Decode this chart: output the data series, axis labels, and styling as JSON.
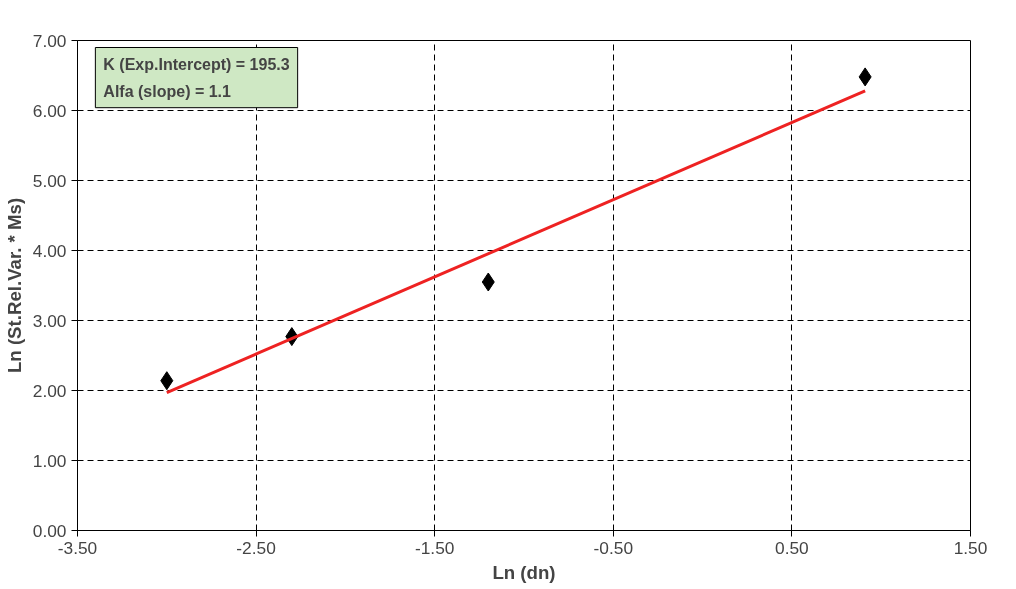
{
  "chart_data": {
    "type": "scatter",
    "xlabel": "Ln (dn)",
    "ylabel": "Ln (St.Rel.Var. * Ms)",
    "annotations": [
      "K (Exp.Intercept) = 195.3",
      "Alfa (slope) = 1.1"
    ],
    "series": [
      {
        "type": "scatter",
        "color": "#000000",
        "marker": "diamond",
        "x": [
          -3.0,
          -2.3,
          -1.2,
          0.91
        ],
        "values": [
          2.14,
          2.77,
          3.55,
          6.48
        ]
      },
      {
        "type": "line",
        "color": "#ee2222",
        "line_style": "solid",
        "marker": "none",
        "x": [
          -3.0,
          0.91
        ],
        "values": [
          1.97,
          6.28
        ]
      }
    ],
    "xlim": [
      -3.5,
      1.5
    ],
    "xticks": [
      {
        "value": -3.5,
        "label": "-3.50"
      },
      {
        "value": -2.5,
        "label": "-2.50"
      },
      {
        "value": -1.5,
        "label": "-1.50"
      },
      {
        "value": -0.5,
        "label": "-0.50"
      },
      {
        "value": 0.5,
        "label": "0.50"
      },
      {
        "value": 1.5,
        "label": "1.50"
      }
    ],
    "ylim": [
      0,
      7
    ],
    "yticks": [
      {
        "value": 0,
        "label": "0.00"
      },
      {
        "value": 1,
        "label": "1.00"
      },
      {
        "value": 2,
        "label": "2.00"
      },
      {
        "value": 3,
        "label": "3.00"
      },
      {
        "value": 4,
        "label": "4.00"
      },
      {
        "value": 5,
        "label": "5.00"
      },
      {
        "value": 6,
        "label": "6.00"
      },
      {
        "value": 7,
        "label": "7.00"
      }
    ],
    "grid": true
  }
}
